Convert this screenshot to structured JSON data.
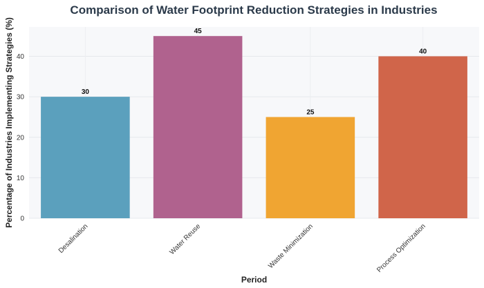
{
  "chart_data": {
    "type": "bar",
    "title": "Comparison of Water Footprint Reduction Strategies in Industries",
    "xlabel": "Period",
    "ylabel": "Percentage of Industries Implementing Strategies (%)",
    "categories": [
      "Desalination",
      "Water Reuse",
      "Waste Minimization",
      "Process Optimization"
    ],
    "values": [
      30,
      45,
      25,
      40
    ],
    "data_labels": [
      "30",
      "45",
      "25",
      "40"
    ],
    "colors": [
      "#5ba0bd",
      "#b0628e",
      "#f0a532",
      "#d0654a"
    ],
    "ylim": [
      0,
      47.25
    ],
    "yticks": [
      0,
      10,
      20,
      30,
      40
    ],
    "grid": true,
    "legend": "none",
    "background": "#f7f8fa"
  }
}
